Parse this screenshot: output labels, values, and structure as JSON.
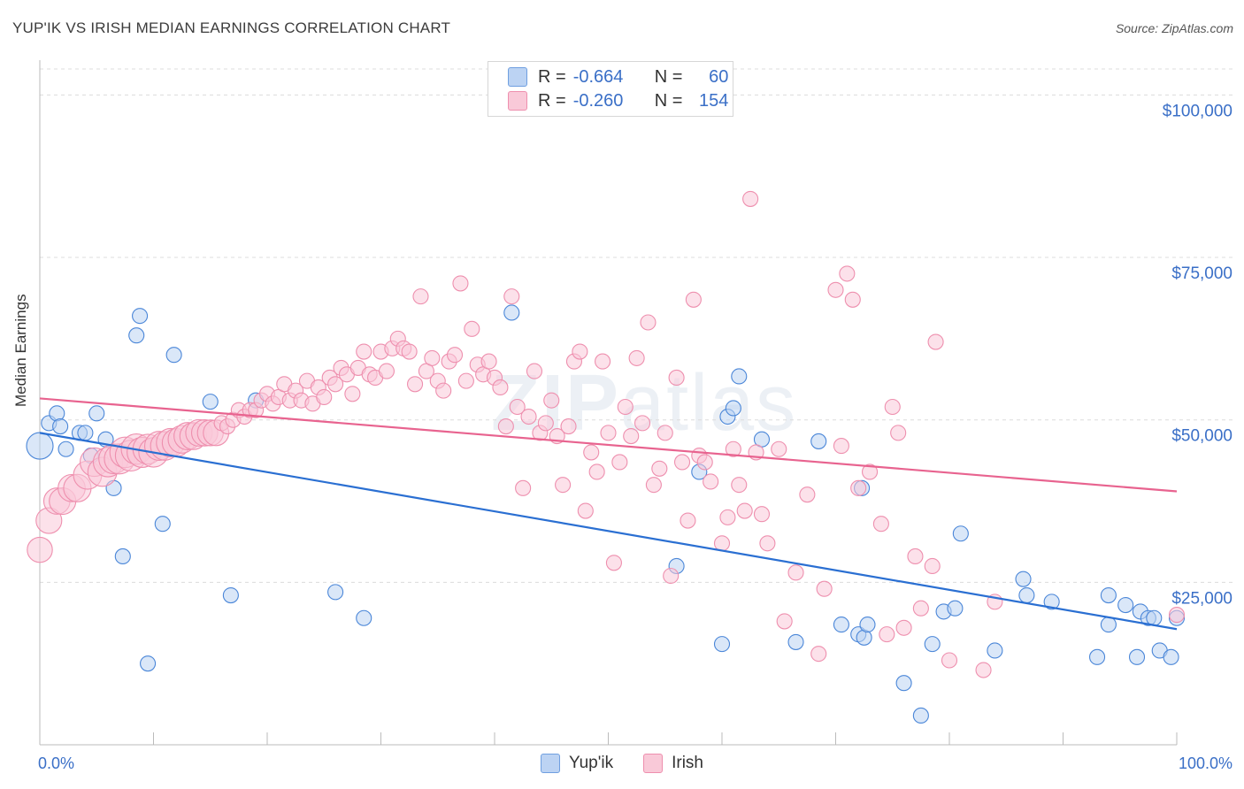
{
  "header": {
    "title": "YUP'IK VS IRISH MEDIAN EARNINGS CORRELATION CHART",
    "source": "Source: ZipAtlas.com"
  },
  "watermark": {
    "bold": "ZIP",
    "light": "atlas"
  },
  "legend": {
    "rows": [
      {
        "r_label": "R =",
        "r_value": "-0.664",
        "n_label": "N =",
        "n_value": "60",
        "color": "#6f9fe0",
        "fill": "#bcd3f3"
      },
      {
        "r_label": "R =",
        "r_value": "-0.260",
        "n_label": "N =",
        "n_value": "154",
        "color": "#ee8fae",
        "fill": "#f9c9d8"
      }
    ]
  },
  "chart_data": {
    "type": "scatter",
    "title": "YUP'IK VS IRISH MEDIAN EARNINGS CORRELATION CHART",
    "xlabel": "",
    "ylabel": "Median Earnings",
    "xlim": [
      0,
      100
    ],
    "ylim": [
      0,
      104000
    ],
    "x_tick_labels": {
      "left": "0.0%",
      "right": "100.0%"
    },
    "y_ticks": [
      {
        "value": 25000,
        "label": "$25,000"
      },
      {
        "value": 50000,
        "label": "$50,000"
      },
      {
        "value": 75000,
        "label": "$75,000"
      },
      {
        "value": 100000,
        "label": "$100,000"
      }
    ],
    "grid": "horizontal dashed",
    "legend_position": "top-center and bottom",
    "series": [
      {
        "name": "Yup'ik",
        "color": "#4a86d8",
        "fill": "#bcd3f3",
        "trend": {
          "x": [
            0,
            100
          ],
          "y": [
            48000,
            17800
          ],
          "color": "#2a6fd2"
        },
        "points": [
          [
            0,
            46000
          ],
          [
            0.8,
            49500
          ],
          [
            1.5,
            51000
          ],
          [
            1.8,
            49000
          ],
          [
            2.3,
            45500
          ],
          [
            3.5,
            48000
          ],
          [
            4,
            48000
          ],
          [
            4.5,
            44500
          ],
          [
            5,
            51000
          ],
          [
            5.8,
            47000
          ],
          [
            6.5,
            39500
          ],
          [
            7.3,
            29000
          ],
          [
            8.5,
            63000
          ],
          [
            8.8,
            66000
          ],
          [
            9.5,
            12500
          ],
          [
            10.8,
            34000
          ],
          [
            11.8,
            60000
          ],
          [
            15,
            52800
          ],
          [
            16.8,
            23000
          ],
          [
            19,
            53000
          ],
          [
            26,
            23500
          ],
          [
            28.5,
            19500
          ],
          [
            41.5,
            66500
          ],
          [
            56,
            27500
          ],
          [
            58,
            42000
          ],
          [
            60,
            15500
          ],
          [
            60.5,
            50500
          ],
          [
            61,
            51800
          ],
          [
            61.5,
            56700
          ],
          [
            63.5,
            47000
          ],
          [
            66.5,
            15800
          ],
          [
            68.5,
            46700
          ],
          [
            70.5,
            18500
          ],
          [
            72,
            17000
          ],
          [
            72.5,
            16500
          ],
          [
            72.8,
            18500
          ],
          [
            72.3,
            39500
          ],
          [
            76,
            9500
          ],
          [
            77.5,
            4500
          ],
          [
            78.5,
            15500
          ],
          [
            79.5,
            20500
          ],
          [
            80.5,
            21000
          ],
          [
            81,
            32500
          ],
          [
            84,
            14500
          ],
          [
            86.5,
            25500
          ],
          [
            86.8,
            23000
          ],
          [
            89,
            22000
          ],
          [
            93,
            13500
          ],
          [
            94,
            23000
          ],
          [
            94,
            18500
          ],
          [
            95.5,
            21500
          ],
          [
            96.5,
            13500
          ],
          [
            96.8,
            20500
          ],
          [
            97.5,
            19500
          ],
          [
            98,
            19500
          ],
          [
            98.5,
            14500
          ],
          [
            99.5,
            13500
          ],
          [
            100,
            19500
          ]
        ]
      },
      {
        "name": "Irish",
        "color": "#ee8fae",
        "fill": "#f9c9d8",
        "trend": {
          "x": [
            0,
            100
          ],
          "y": [
            53300,
            39000
          ],
          "color": "#e8638f"
        },
        "points": [
          [
            0,
            30000
          ],
          [
            0.8,
            34500
          ],
          [
            1.5,
            37500
          ],
          [
            2,
            37500
          ],
          [
            2.8,
            39500
          ],
          [
            3.3,
            39500
          ],
          [
            4.2,
            41500
          ],
          [
            4.8,
            43500
          ],
          [
            5.5,
            42000
          ],
          [
            6,
            43500
          ],
          [
            6.5,
            44000
          ],
          [
            7,
            44000
          ],
          [
            7.5,
            45000
          ],
          [
            8,
            44500
          ],
          [
            8.5,
            45500
          ],
          [
            9,
            45000
          ],
          [
            9.5,
            45500
          ],
          [
            10,
            45000
          ],
          [
            10.5,
            46000
          ],
          [
            11,
            46000
          ],
          [
            11.5,
            46500
          ],
          [
            12,
            46500
          ],
          [
            12.5,
            47000
          ],
          [
            13,
            47500
          ],
          [
            13.5,
            47500
          ],
          [
            14,
            48000
          ],
          [
            14.5,
            48000
          ],
          [
            15,
            48000
          ],
          [
            15.5,
            48000
          ],
          [
            16,
            49500
          ],
          [
            16.5,
            49000
          ],
          [
            17,
            50000
          ],
          [
            17.5,
            51500
          ],
          [
            18,
            50500
          ],
          [
            18.5,
            51500
          ],
          [
            19,
            51500
          ],
          [
            19.5,
            53000
          ],
          [
            20,
            54000
          ],
          [
            20.5,
            52500
          ],
          [
            21,
            53500
          ],
          [
            21.5,
            55500
          ],
          [
            22,
            53000
          ],
          [
            22.5,
            54500
          ],
          [
            23,
            53000
          ],
          [
            23.5,
            56000
          ],
          [
            24,
            52500
          ],
          [
            24.5,
            55000
          ],
          [
            25,
            53500
          ],
          [
            25.5,
            56500
          ],
          [
            26,
            55500
          ],
          [
            26.5,
            58000
          ],
          [
            27,
            57000
          ],
          [
            27.5,
            54000
          ],
          [
            28,
            58000
          ],
          [
            28.5,
            60500
          ],
          [
            29,
            57000
          ],
          [
            29.5,
            56500
          ],
          [
            30,
            60500
          ],
          [
            30.5,
            57500
          ],
          [
            31,
            61000
          ],
          [
            31.5,
            62500
          ],
          [
            32,
            61000
          ],
          [
            32.5,
            60500
          ],
          [
            33,
            55500
          ],
          [
            33.5,
            69000
          ],
          [
            34,
            57500
          ],
          [
            34.5,
            59500
          ],
          [
            35,
            56000
          ],
          [
            35.5,
            54500
          ],
          [
            36,
            59000
          ],
          [
            36.5,
            60000
          ],
          [
            37,
            71000
          ],
          [
            37.5,
            56000
          ],
          [
            38,
            64000
          ],
          [
            38.5,
            58500
          ],
          [
            39,
            57000
          ],
          [
            39.5,
            59000
          ],
          [
            40,
            56500
          ],
          [
            40.5,
            55000
          ],
          [
            41,
            49000
          ],
          [
            41.5,
            69000
          ],
          [
            42,
            52000
          ],
          [
            42.5,
            39500
          ],
          [
            43,
            50500
          ],
          [
            43.5,
            57500
          ],
          [
            44,
            48000
          ],
          [
            44.5,
            49500
          ],
          [
            45,
            53000
          ],
          [
            45.5,
            47500
          ],
          [
            46,
            40000
          ],
          [
            46.5,
            49000
          ],
          [
            47,
            59000
          ],
          [
            47.5,
            60500
          ],
          [
            48,
            36000
          ],
          [
            48.5,
            45000
          ],
          [
            49,
            42000
          ],
          [
            49.5,
            59000
          ],
          [
            50,
            48000
          ],
          [
            50.5,
            28000
          ],
          [
            51,
            43500
          ],
          [
            51.5,
            52000
          ],
          [
            52,
            47500
          ],
          [
            52.5,
            59500
          ],
          [
            53,
            49500
          ],
          [
            53.5,
            65000
          ],
          [
            54,
            40000
          ],
          [
            54.5,
            42500
          ],
          [
            55,
            48000
          ],
          [
            55.5,
            26000
          ],
          [
            56,
            56500
          ],
          [
            56.5,
            43500
          ],
          [
            57,
            34500
          ],
          [
            57.5,
            68500
          ],
          [
            58,
            44500
          ],
          [
            58.5,
            43500
          ],
          [
            59,
            40500
          ],
          [
            60,
            31000
          ],
          [
            60.5,
            35000
          ],
          [
            61,
            45500
          ],
          [
            61.5,
            40000
          ],
          [
            62,
            36000
          ],
          [
            62.5,
            84000
          ],
          [
            63,
            45000
          ],
          [
            63.5,
            35500
          ],
          [
            64,
            31000
          ],
          [
            65,
            45500
          ],
          [
            65.5,
            19000
          ],
          [
            66.5,
            26500
          ],
          [
            67.5,
            38500
          ],
          [
            68.5,
            14000
          ],
          [
            69,
            24000
          ],
          [
            70,
            70000
          ],
          [
            70.5,
            46000
          ],
          [
            71,
            72500
          ],
          [
            71.5,
            68500
          ],
          [
            72,
            39500
          ],
          [
            73,
            42000
          ],
          [
            74,
            34000
          ],
          [
            74.5,
            17000
          ],
          [
            75,
            52000
          ],
          [
            75.5,
            48000
          ],
          [
            76,
            18000
          ],
          [
            77,
            29000
          ],
          [
            77.5,
            21000
          ],
          [
            78.5,
            27500
          ],
          [
            78.8,
            62000
          ],
          [
            80,
            13000
          ],
          [
            83,
            11500
          ],
          [
            84,
            22000
          ],
          [
            100,
            20000
          ]
        ]
      }
    ]
  },
  "bottom_legend": {
    "items": [
      "Yup'ik",
      "Irish"
    ]
  }
}
